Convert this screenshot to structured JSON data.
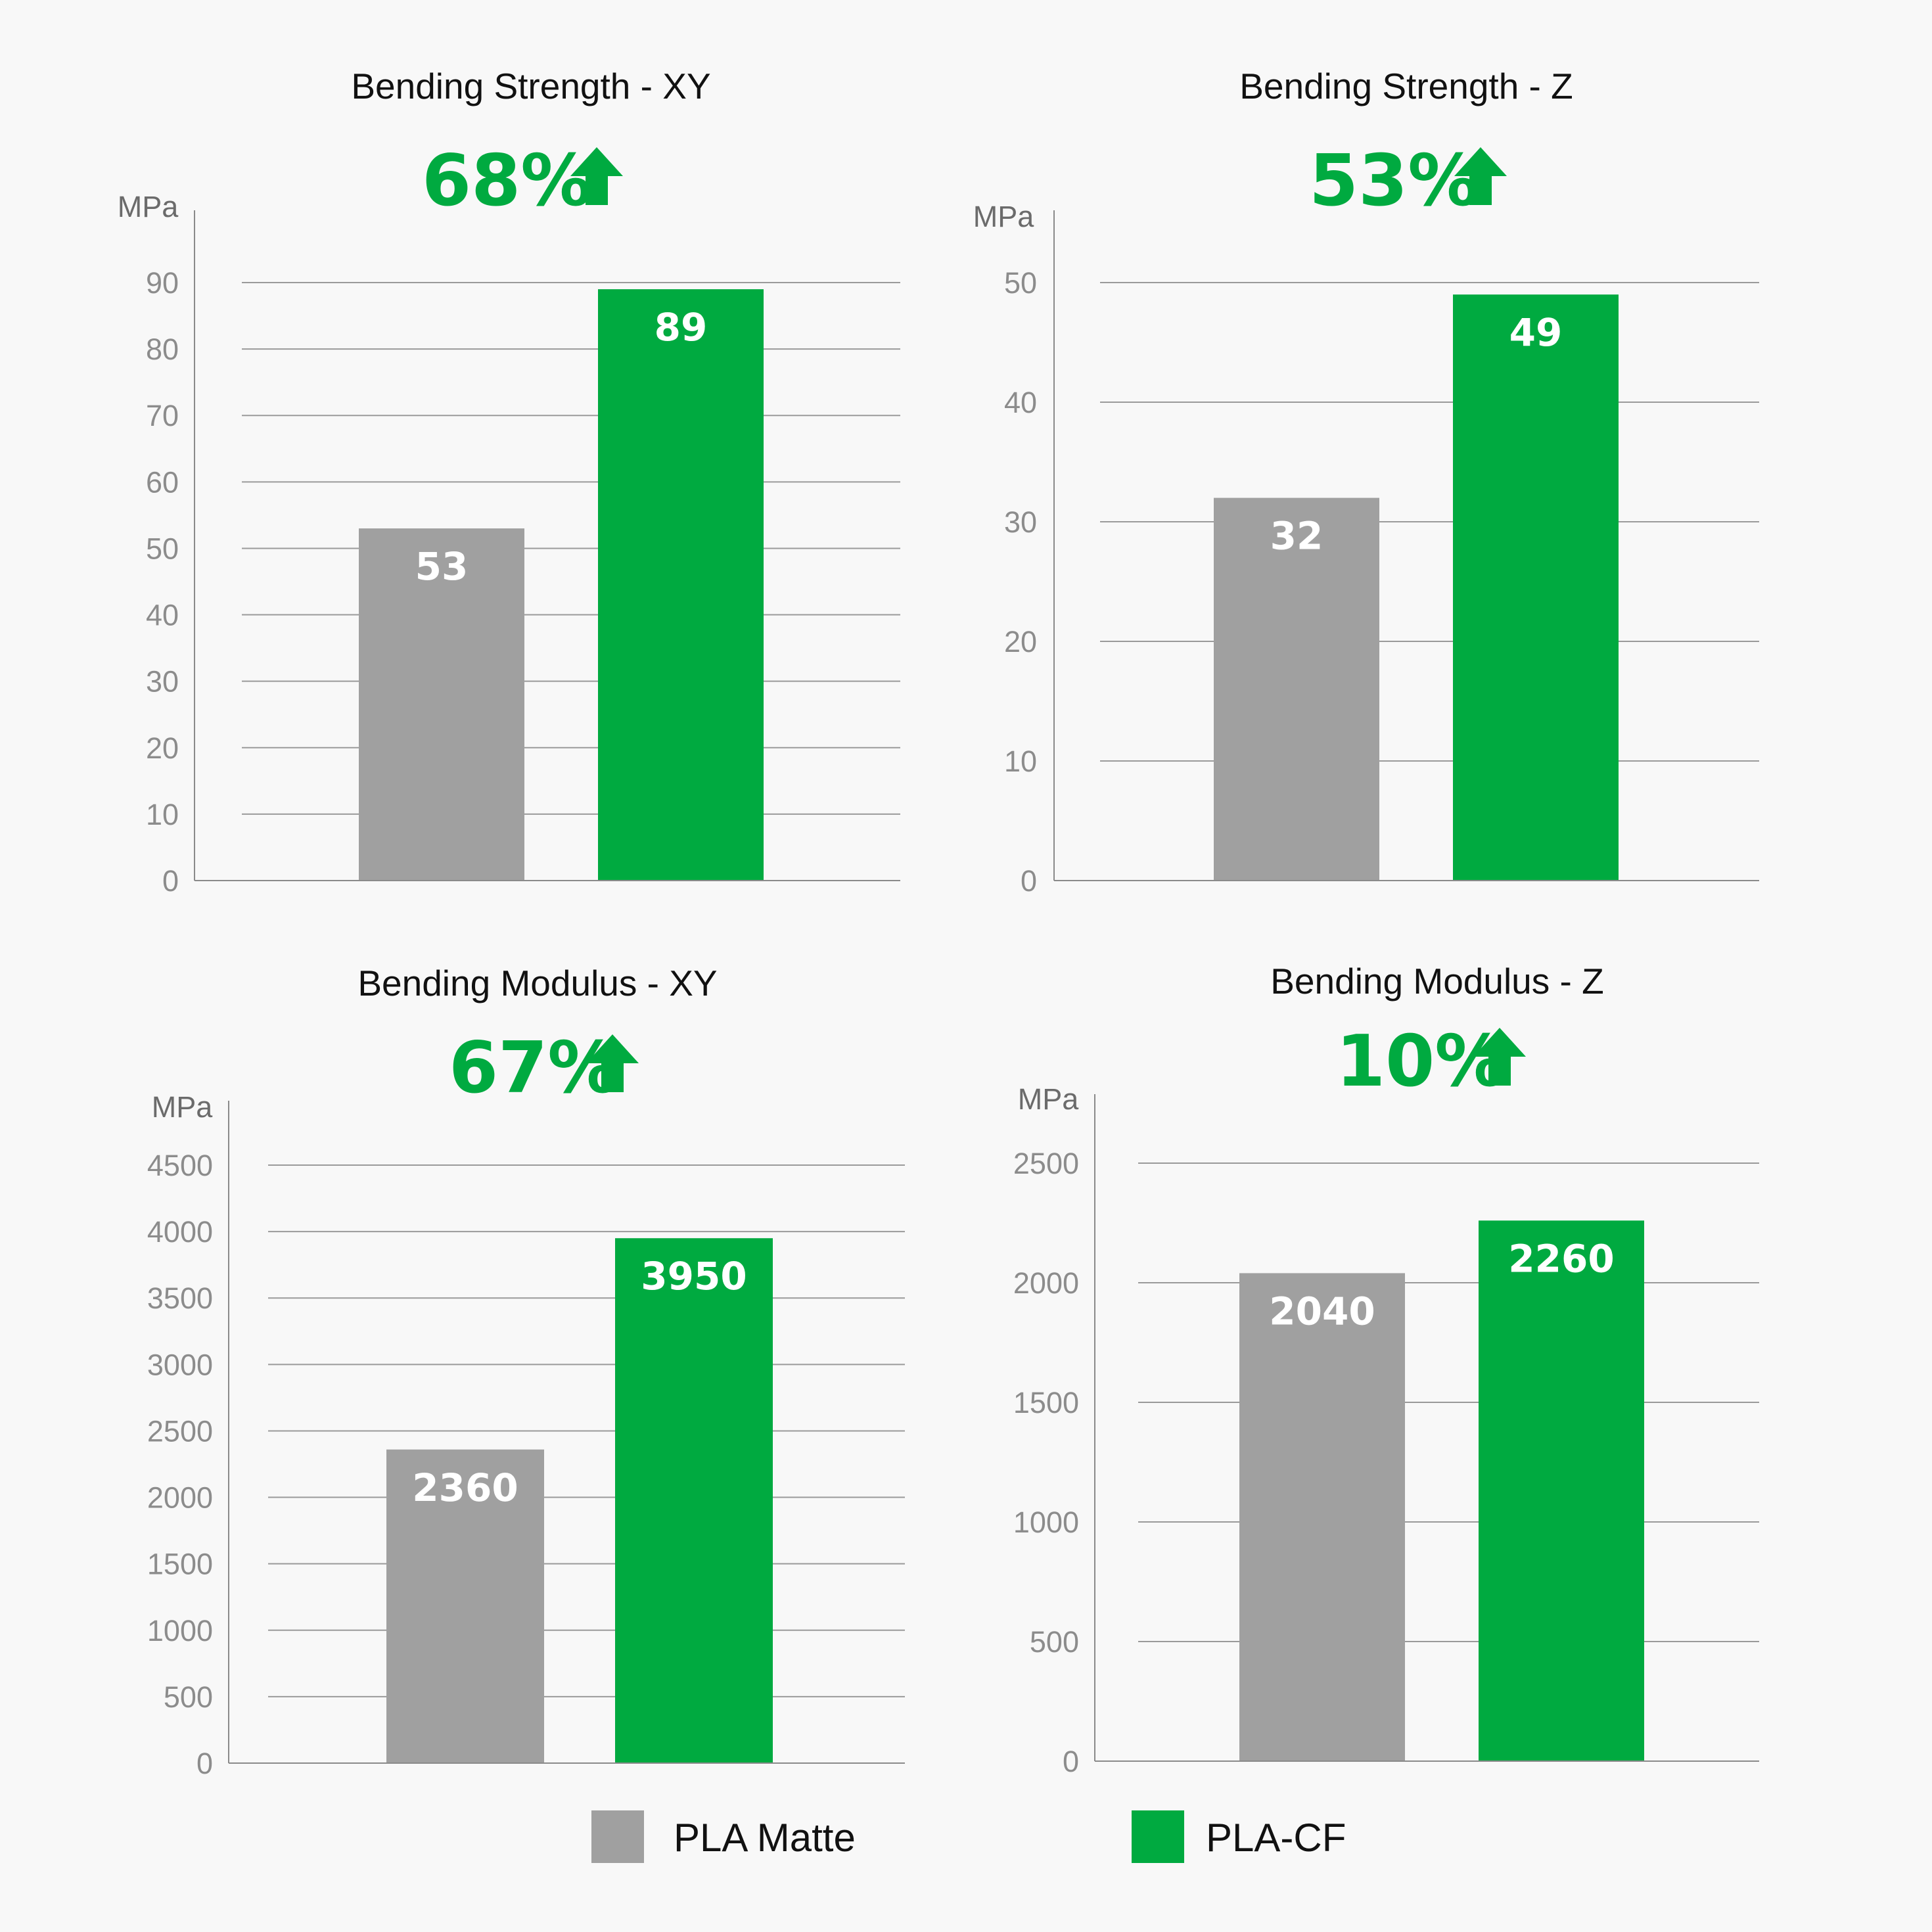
{
  "colors": {
    "background": "#f8f8f8",
    "pla_matte": "#a0a0a0",
    "pla_cf": "#00aa40",
    "gridline": "#9a9a9a",
    "axis": "#8a8a8a",
    "arrow": "#00aa40"
  },
  "legend": {
    "items": [
      {
        "label": "PLA Matte",
        "color": "#a0a0a0"
      },
      {
        "label": "PLA-CF",
        "color": "#00aa40"
      }
    ],
    "placement": "bottom"
  },
  "chart_data": [
    {
      "type": "bar",
      "title": "Bending Strength - XY",
      "increase": "68%",
      "increase_icon": "up-arrow-icon",
      "ylabel": "MPa",
      "ylim": [
        0,
        90
      ],
      "ticks": [
        0,
        10,
        20,
        30,
        40,
        50,
        60,
        70,
        80,
        90
      ],
      "grid": true,
      "categories": [
        "PLA Matte",
        "PLA-CF"
      ],
      "values": [
        53,
        89
      ]
    },
    {
      "type": "bar",
      "title": "Bending Strength - Z",
      "increase": "53%",
      "increase_icon": "up-arrow-icon",
      "ylabel": "MPa",
      "ylim": [
        0,
        50
      ],
      "ticks": [
        0,
        10,
        20,
        30,
        40,
        50
      ],
      "grid": true,
      "categories": [
        "PLA Matte",
        "PLA-CF"
      ],
      "values": [
        32,
        49
      ]
    },
    {
      "type": "bar",
      "title": "Bending Modulus - XY",
      "increase": "67%",
      "increase_icon": "up-arrow-icon",
      "ylabel": "MPa",
      "ylim": [
        0,
        4500
      ],
      "ticks": [
        0,
        500,
        1000,
        1500,
        2000,
        2500,
        3000,
        3500,
        4000,
        4500
      ],
      "grid": true,
      "categories": [
        "PLA Matte",
        "PLA-CF"
      ],
      "values": [
        2360,
        3950
      ]
    },
    {
      "type": "bar",
      "title": "Bending Modulus - Z",
      "increase": "10%",
      "increase_icon": "up-arrow-icon",
      "ylabel": "MPa",
      "ylim": [
        0,
        2500
      ],
      "ticks": [
        0,
        500,
        1000,
        1500,
        2000,
        2500
      ],
      "grid": true,
      "categories": [
        "PLA Matte",
        "PLA-CF"
      ],
      "values": [
        2040,
        2260
      ]
    }
  ]
}
